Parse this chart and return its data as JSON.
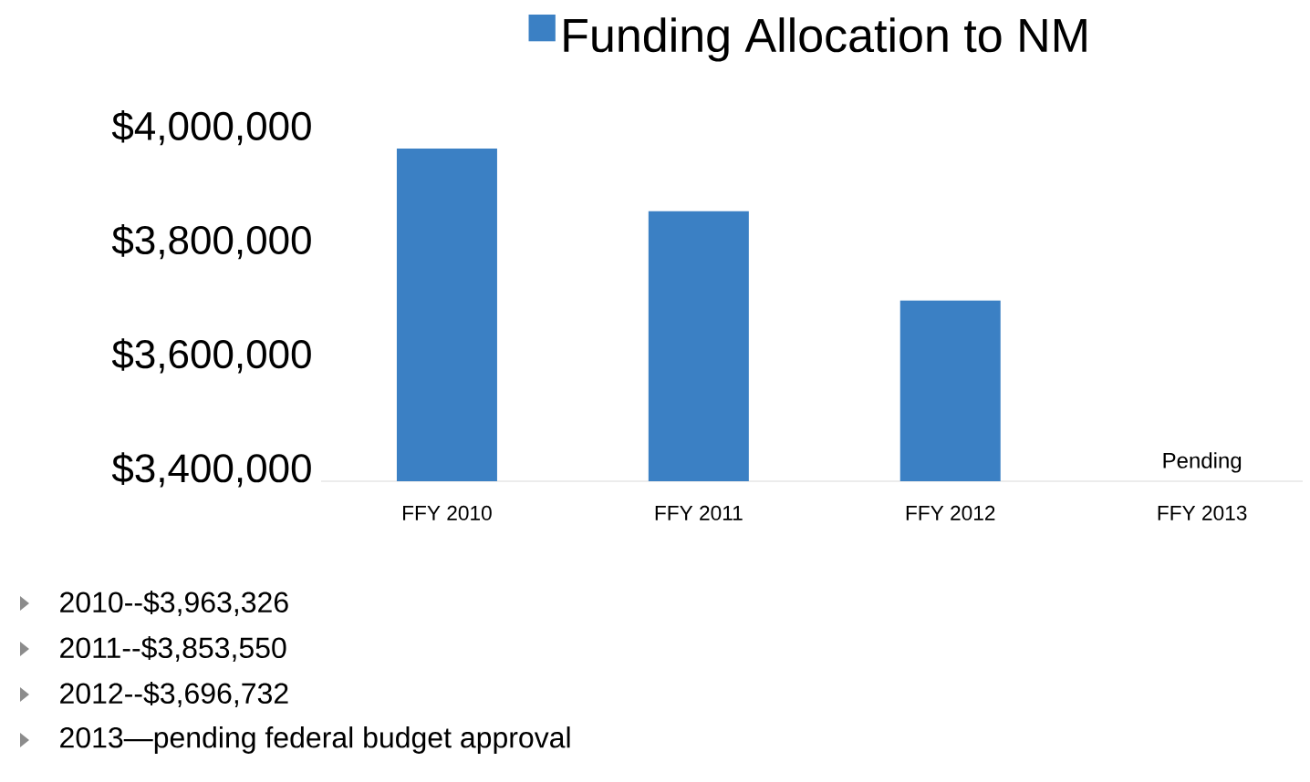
{
  "chart_data": {
    "type": "bar",
    "categories": [
      "FFY 2010",
      "FFY 2011",
      "FFY 2012",
      "FFY 2013"
    ],
    "series": [
      {
        "name": "Funding Allocation to NM",
        "color": "#3b80c4",
        "values": [
          3963326,
          3853550,
          3696732,
          null
        ]
      }
    ],
    "ylim": [
      3380000,
      4000000
    ],
    "yticks": [
      {
        "value": 3400000,
        "label": "$3,400,000"
      },
      {
        "value": 3600000,
        "label": "$3,600,000"
      },
      {
        "value": 3800000,
        "label": "$3,800,000"
      },
      {
        "value": 4000000,
        "label": "$4,000,000"
      }
    ],
    "legend": "top",
    "annotations": [
      "Pending",
      "2010--$3,963,326",
      "2011--$3,853,550",
      "2012--$3,696,732",
      "2013—pending federal budget approval"
    ]
  }
}
